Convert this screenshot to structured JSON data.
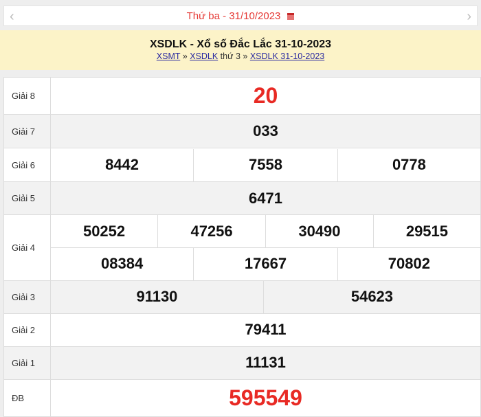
{
  "nav": {
    "date_label": "Thứ ba -  31/10/2023",
    "prev": "‹",
    "next": "›",
    "calendar_icon": "calendar-icon"
  },
  "header": {
    "title": "XSDLK - Xổ số Đắc Lắc 31-10-2023",
    "breadcrumb": [
      {
        "label": "XSMT"
      },
      {
        "sep": "»"
      },
      {
        "label": "XSDLK"
      },
      {
        "text": "thứ 3"
      },
      {
        "sep": "»"
      },
      {
        "label": "XSDLK 31-10-2023"
      }
    ]
  },
  "colors": {
    "accent_red": "#e82a24",
    "header_bg": "#fcf3c8"
  },
  "prizes": [
    {
      "label": "Giải 8",
      "numbers": [
        "20"
      ]
    },
    {
      "label": "Giải 7",
      "numbers": [
        "033"
      ]
    },
    {
      "label": "Giải 6",
      "numbers": [
        "8442",
        "7558",
        "0778"
      ]
    },
    {
      "label": "Giải 5",
      "numbers": [
        "6471"
      ]
    },
    {
      "label": "Giải 4",
      "numbers": [
        "50252",
        "47256",
        "30490",
        "29515",
        "08384",
        "17667",
        "70802"
      ]
    },
    {
      "label": "Giải 3",
      "numbers": [
        "91130",
        "54623"
      ]
    },
    {
      "label": "Giải 2",
      "numbers": [
        "79411"
      ]
    },
    {
      "label": "Giải 1",
      "numbers": [
        "11131"
      ]
    },
    {
      "label": "ĐB",
      "numbers": [
        "595549"
      ]
    }
  ]
}
